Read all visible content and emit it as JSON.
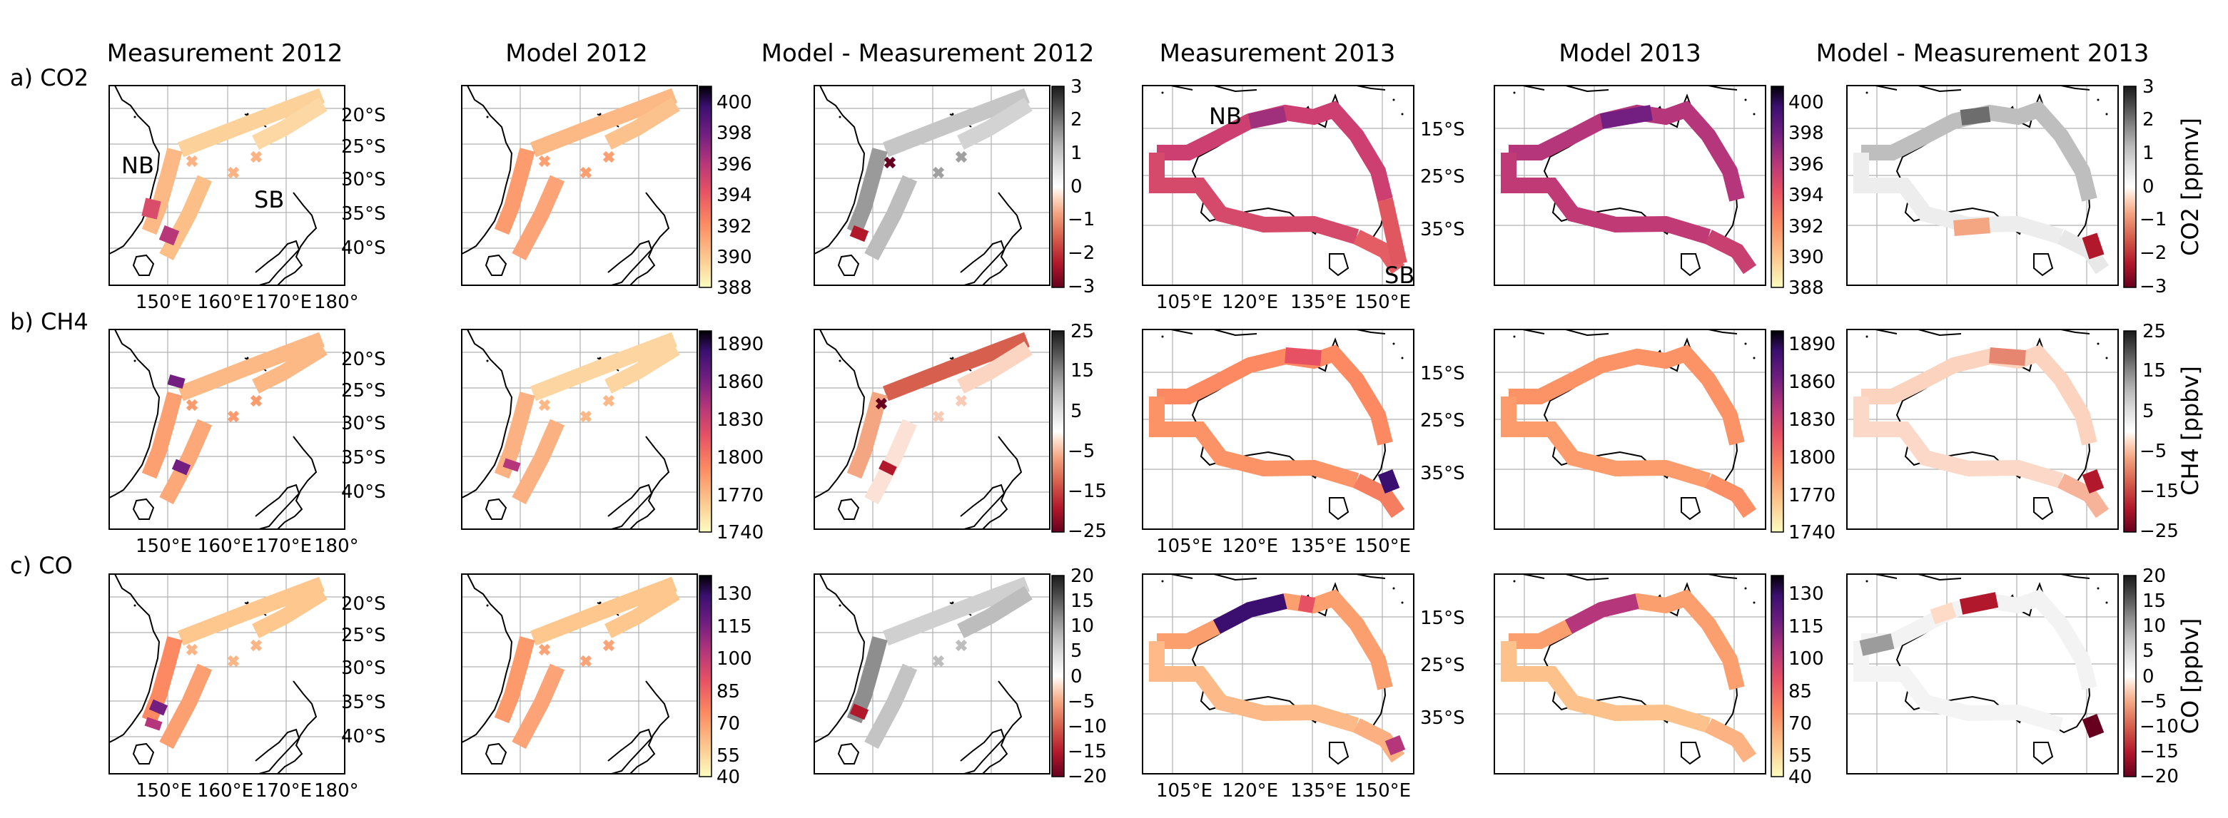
{
  "column_titles": [
    "Measurement 2012",
    "Model 2012",
    "Model - Measurement 2012",
    "Measurement 2013",
    "Model 2013",
    "Model - Measurement 2013"
  ],
  "row_labels": [
    "a) CO2",
    "b) CH4",
    "c) CO"
  ],
  "units": [
    "CO2 [ppmv]",
    "CH4 [ppbv]",
    "CO [ppbv]"
  ],
  "lon_ticks_2012": [
    "150°E",
    "160°E",
    "170°E",
    "180°"
  ],
  "lat_ticks_2012": [
    "20°S",
    "25°S",
    "30°S",
    "35°S",
    "40°S"
  ],
  "lon_ticks_2013": [
    "105°E",
    "120°E",
    "135°E",
    "150°E"
  ],
  "lat_ticks_2013": [
    "15°S",
    "25°S",
    "35°S"
  ],
  "region_labels": {
    "nb": "NB",
    "sb": "SB"
  },
  "colorbar_ticks": {
    "CO2": [
      "400",
      "398",
      "396",
      "394",
      "392",
      "390",
      "388"
    ],
    "CO2_diff": [
      "3",
      "2",
      "1",
      "0",
      "−1",
      "−2",
      "−3"
    ],
    "CH4": [
      "1890",
      "1860",
      "1830",
      "1800",
      "1770",
      "1740"
    ],
    "CH4_diff": [
      "25",
      "15",
      "5",
      "−5",
      "−15",
      "−25"
    ],
    "CO": [
      "130",
      "115",
      "100",
      "85",
      "70",
      "55",
      "40"
    ],
    "CO_diff": [
      "20",
      "15",
      "10",
      "5",
      "0",
      "−5",
      "−10",
      "−15",
      "−20"
    ]
  },
  "colormaps": {
    "magma_r": [
      "#fcfdbf",
      "#fdc78d",
      "#fc8961",
      "#e65164",
      "#b5367a",
      "#721f81",
      "#3b0f70",
      "#000004"
    ],
    "rdgy": [
      "#67001f",
      "#b2182b",
      "#d6604d",
      "#f4a582",
      "#fddbc7",
      "#ffffff",
      "#e0e0e0",
      "#bababa",
      "#878787",
      "#4d4d4d",
      "#1a1a1a"
    ]
  },
  "grid_colors": {
    "line": "#b0b0b0",
    "frame": "#000000",
    "coast": "#000000"
  }
}
